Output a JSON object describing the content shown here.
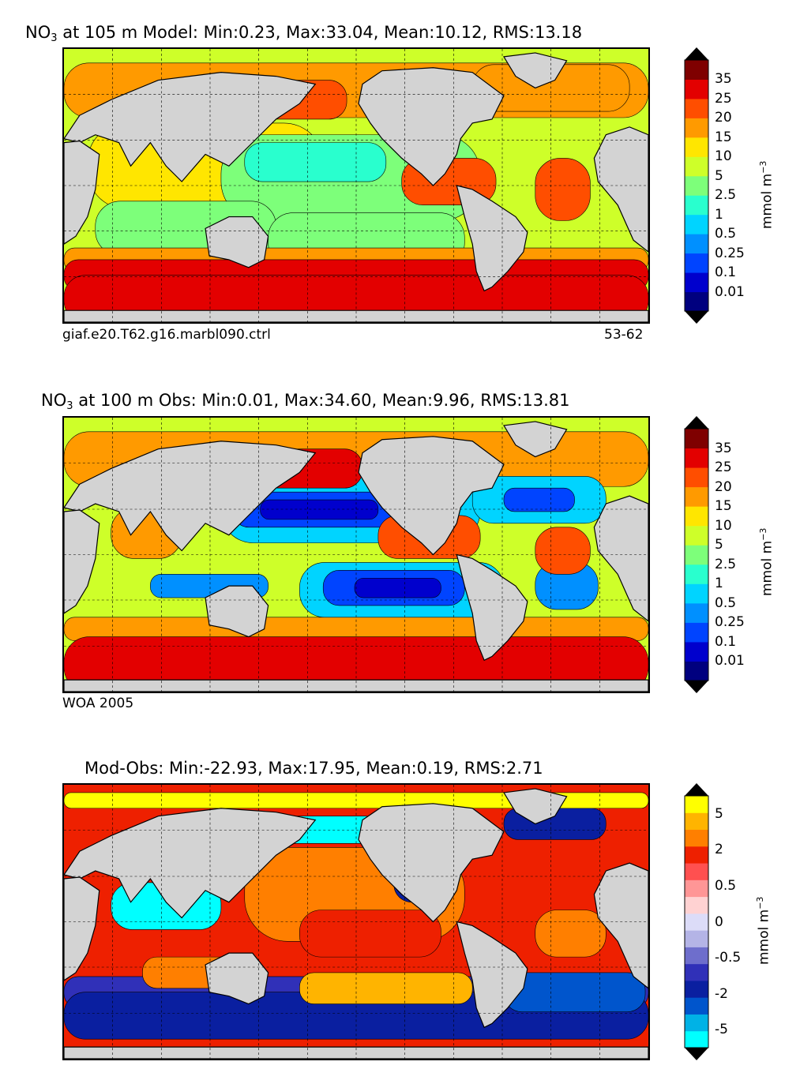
{
  "chart_data": [
    {
      "type": "heatmap",
      "species": "NO",
      "species_sub": "3",
      "title_rest": " at 105 m Model: Min:0.23, Max:33.04, Mean:10.12, RMS:13.18",
      "stats": {
        "min": 0.23,
        "max": 33.04,
        "mean": 10.12,
        "rms": 13.18
      },
      "note_left": "giaf.e20.T62.g16.marbl090.ctrl",
      "note_right": "53-62",
      "colorbar": {
        "ticks": [
          "35",
          "25",
          "20",
          "15",
          "10",
          "5",
          "2.5",
          "1",
          "0.5",
          "0.25",
          "0.1",
          "0.01"
        ],
        "colors": [
          "#00007f",
          "#0000cd",
          "#0044ff",
          "#0090ff",
          "#00d4ff",
          "#29ffce",
          "#7dff7a",
          "#ceff29",
          "#ffe600",
          "#ff9a00",
          "#ff4e00",
          "#e30000",
          "#7f0000"
        ],
        "units_base": "mmol m",
        "units_exp": "−3",
        "extend": "both"
      },
      "grid": true,
      "land_color": "#d3d3d3"
    },
    {
      "type": "heatmap",
      "species": "NO",
      "species_sub": "3",
      "title_rest": " at 100 m Obs: Min:0.01, Max:34.60, Mean:9.96, RMS:13.81",
      "stats": {
        "min": 0.01,
        "max": 34.6,
        "mean": 9.96,
        "rms": 13.81
      },
      "note_left": "WOA 2005",
      "colorbar": {
        "ticks": [
          "35",
          "25",
          "20",
          "15",
          "10",
          "5",
          "2.5",
          "1",
          "0.5",
          "0.25",
          "0.1",
          "0.01"
        ],
        "colors": [
          "#00007f",
          "#0000cd",
          "#0044ff",
          "#0090ff",
          "#00d4ff",
          "#29ffce",
          "#7dff7a",
          "#ceff29",
          "#ffe600",
          "#ff9a00",
          "#ff4e00",
          "#e30000",
          "#7f0000"
        ],
        "units_base": "mmol m",
        "units_exp": "−3",
        "extend": "both"
      },
      "grid": true,
      "land_color": "#d3d3d3"
    },
    {
      "type": "heatmap",
      "title": "Mod-Obs: Min:-22.93, Max:17.95, Mean:0.19, RMS:2.71",
      "stats": {
        "min": -22.93,
        "max": 17.95,
        "mean": 0.19,
        "rms": 2.71
      },
      "colorbar": {
        "ticks": [
          "5",
          "2",
          "0.5",
          "0",
          "-0.5",
          "-2",
          "-5"
        ],
        "colors": [
          "#00ffff",
          "#00b2e6",
          "#0055cc",
          "#0a1fa0",
          "#3030b8",
          "#6e6ecc",
          "#b4b4e6",
          "#dcdcf8",
          "#ffd2d2",
          "#ff9696",
          "#ff5050",
          "#ee2000",
          "#ff7f00",
          "#ffb400",
          "#ffff00"
        ],
        "units_base": "mmol m",
        "units_exp": "−3",
        "extend": "both"
      },
      "grid": true,
      "land_color": "#d3d3d3"
    }
  ]
}
